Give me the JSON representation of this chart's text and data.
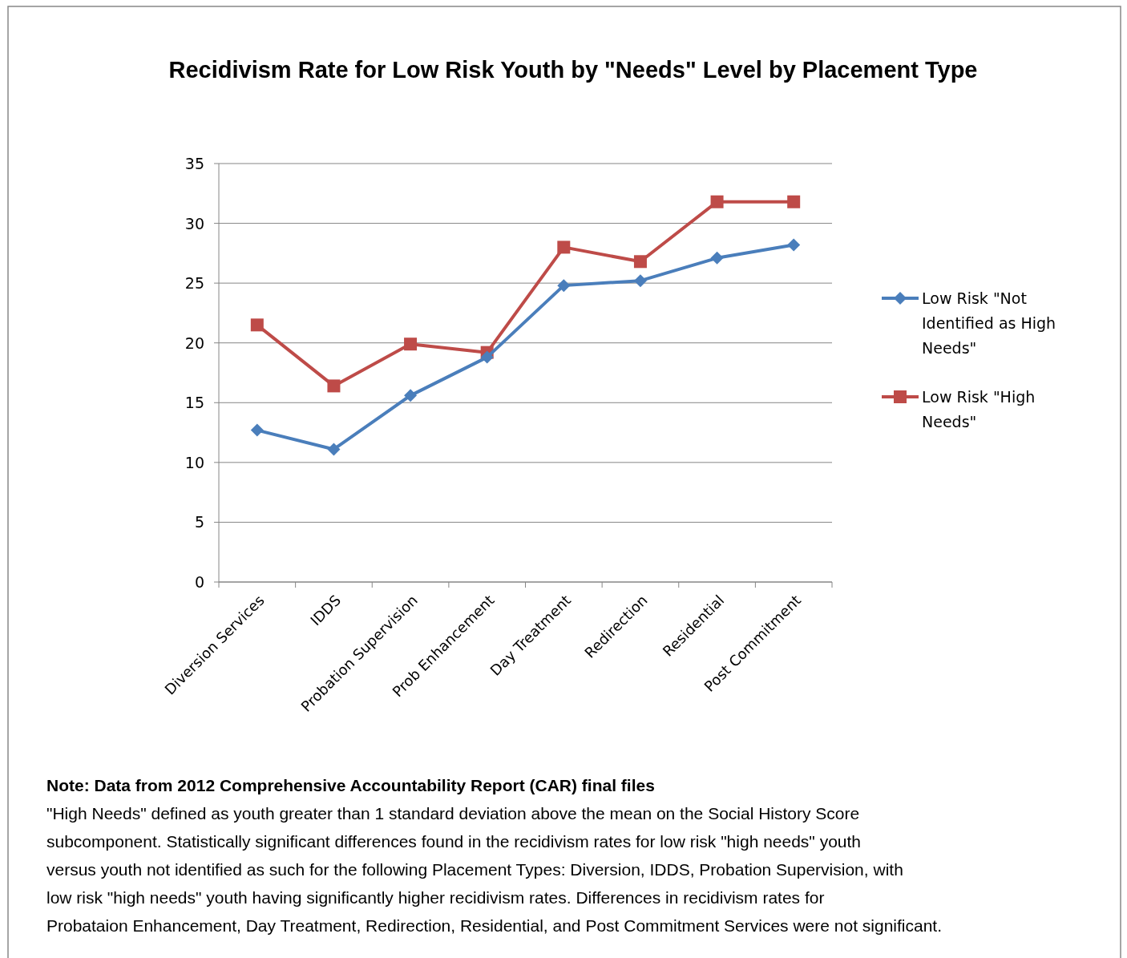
{
  "chart_data": {
    "type": "line",
    "title": "Recidivism Rate for Low Risk Youth by \"Needs\" Level by Placement Type",
    "categories": [
      "Diversion Services",
      "IDDS",
      "Probation Supervision",
      "Prob Enhancement",
      "Day Treatment",
      "Redirection",
      "Residential",
      "Post Commitment"
    ],
    "series": [
      {
        "name": "Low Risk \"Not Identified as High Needs\"",
        "color": "#4a7ebb",
        "marker": "diamond",
        "values": [
          12.7,
          11.1,
          15.6,
          18.8,
          24.8,
          25.2,
          27.1,
          28.2
        ]
      },
      {
        "name": "Low Risk \"High Needs\"",
        "color": "#be4b48",
        "marker": "square",
        "values": [
          21.5,
          16.4,
          19.9,
          19.2,
          28.0,
          26.8,
          31.8,
          31.8
        ]
      }
    ],
    "ylim": [
      0,
      35
    ],
    "yticks": [
      0,
      5,
      10,
      15,
      20,
      25,
      30,
      35
    ],
    "grid": "y",
    "legend": "right",
    "annotations": [
      "Note: Data from 2012 Comprehensive Accountability Report (CAR) final files",
      "\"High Needs\" defined as youth greater than 1 standard deviation above the mean on the Social History Score subcomponent. Statistically significant differences found in the recidivism rates for low risk \"high needs\" youth versus youth not identified as such for the following Placement Types: Diversion, IDDS, Probation Supervision, with low risk \"high needs\" youth having significantly higher recidivism rates. Differences in recidivism rates for Probataion Enhancement, Day Treatment, Redirection, Residential, and Post Commitment Services were not significant."
    ]
  }
}
